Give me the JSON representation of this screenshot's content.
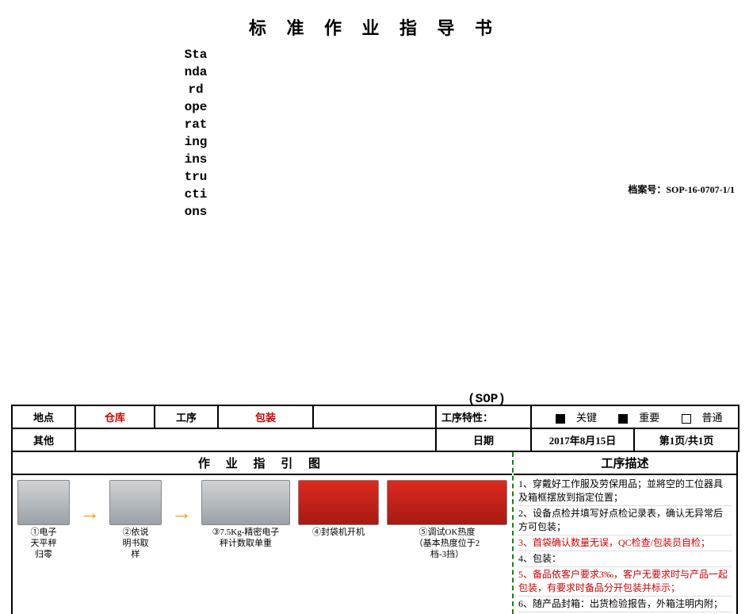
{
  "title_main": "标 准 作 业 指 导 书",
  "vertical_word": "Standard operating instructions",
  "sop_tag": "(SOP)",
  "doc_number_label": "档案号：",
  "doc_number": "SOP-16-0707-1/1",
  "header": {
    "loc_label": "地点",
    "loc_value": "仓库",
    "proc_label": "工序",
    "proc_value": "包装",
    "proc_feature_label": "工序特性：",
    "chk_key": "关键",
    "chk_imp": "重要",
    "chk_norm": "普通",
    "other_label": "其他",
    "date_label": "日期",
    "date_value": "2017年8月15日",
    "page_info": "第1页/共1页"
  },
  "guide_head": "作 业 指 引 图",
  "desc_head": "工序描述",
  "figs": {
    "f1": "①电子\n天平秤\n归零",
    "f2": "②依说\n明书取\n样",
    "f3": "③7.5Kg-精密电子\n秤计数取单重",
    "f4": "④封袋机开机",
    "f5": "⑤调试OK热度\n（基本热度位于2\n档-3挡）"
  },
  "desc": {
    "d1": "1、穿戴好工作服及劳保用品；並將空的工位器具及箱框摆放到指定位置；",
    "d2": "2、设备点检并填写好点检记录表，确认无异常后方可包装；",
    "d3": "3、首袋确认数量无误，QC检查/包装员自检；",
    "d5a": "5、备品依客户要求3‰，客户无要求时与产品一起包装，有要求时备品分开包装并标示；",
    "d4": "4、包装：",
    "d6": "6、随产品封箱：出货检验报告，外箱注明内附；"
  }
}
